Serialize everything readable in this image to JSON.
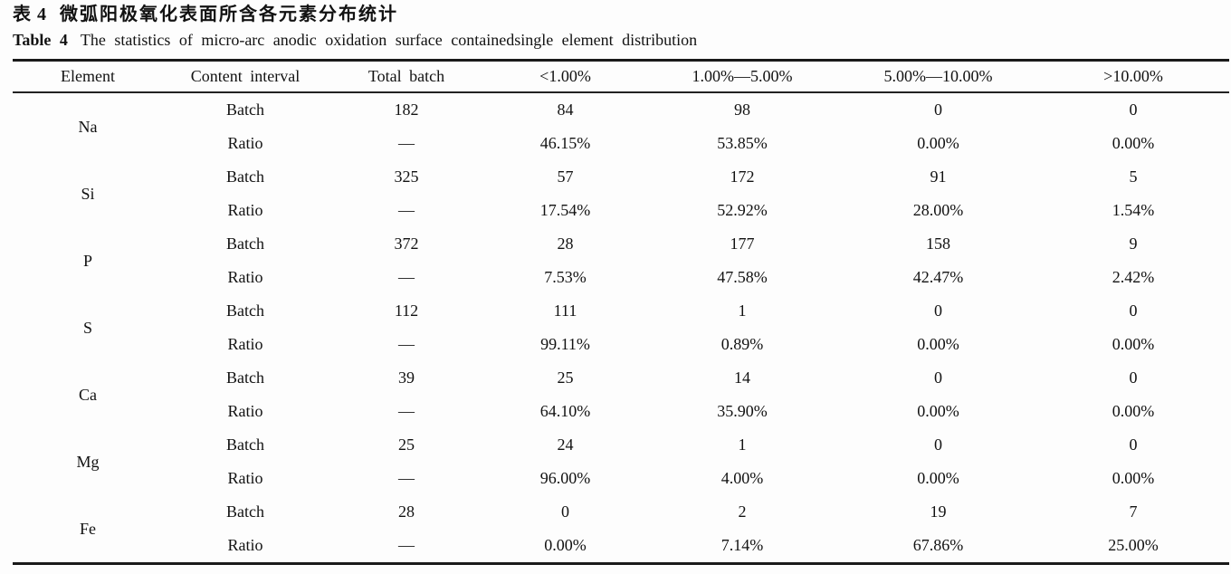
{
  "page": {
    "title_zh": {
      "label": "表 4",
      "text": "微弧阳极氧化表面所含各元素分布统计"
    },
    "title_en": {
      "label": "Table 4",
      "text": "The statistics of micro-arc anodic oxidation surface containedsingle element distribution"
    }
  },
  "table": {
    "columns": [
      "Element",
      "Content interval",
      "Total batch",
      "<1.00%",
      "1.00%—5.00%",
      "5.00%—10.00%",
      ">10.00%"
    ],
    "sub_labels": [
      "Batch",
      "Ratio"
    ],
    "rows": [
      {
        "element": "Na",
        "batch": [
          "182",
          "84",
          "98",
          "0",
          "0"
        ],
        "ratio": [
          "—",
          "46.15%",
          "53.85%",
          "0.00%",
          "0.00%"
        ]
      },
      {
        "element": "Si",
        "batch": [
          "325",
          "57",
          "172",
          "91",
          "5"
        ],
        "ratio": [
          "—",
          "17.54%",
          "52.92%",
          "28.00%",
          "1.54%"
        ]
      },
      {
        "element": "P",
        "batch": [
          "372",
          "28",
          "177",
          "158",
          "9"
        ],
        "ratio": [
          "—",
          "7.53%",
          "47.58%",
          "42.47%",
          "2.42%"
        ]
      },
      {
        "element": "S",
        "batch": [
          "112",
          "111",
          "1",
          "0",
          "0"
        ],
        "ratio": [
          "—",
          "99.11%",
          "0.89%",
          "0.00%",
          "0.00%"
        ]
      },
      {
        "element": "Ca",
        "batch": [
          "39",
          "25",
          "14",
          "0",
          "0"
        ],
        "ratio": [
          "—",
          "64.10%",
          "35.90%",
          "0.00%",
          "0.00%"
        ]
      },
      {
        "element": "Mg",
        "batch": [
          "25",
          "24",
          "1",
          "0",
          "0"
        ],
        "ratio": [
          "—",
          "96.00%",
          "4.00%",
          "0.00%",
          "0.00%"
        ]
      },
      {
        "element": "Fe",
        "batch": [
          "28",
          "0",
          "2",
          "19",
          "7"
        ],
        "ratio": [
          "—",
          "0.00%",
          "7.14%",
          "67.86%",
          "25.00%"
        ]
      }
    ]
  },
  "colors": {
    "text": "#121212",
    "rule": "#1a1a1a",
    "background": "#fdfdfd"
  }
}
